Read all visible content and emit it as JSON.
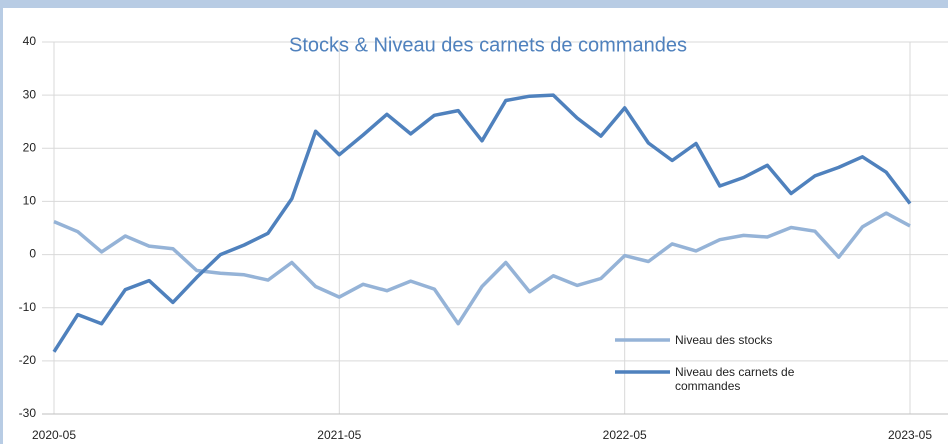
{
  "chart_data": {
    "type": "line",
    "title": "Stocks & Niveau des carnets de commandes",
    "categories": [
      "2020-05",
      null,
      null,
      null,
      null,
      null,
      null,
      null,
      null,
      null,
      null,
      null,
      "2021-05",
      null,
      null,
      null,
      null,
      null,
      null,
      null,
      null,
      null,
      null,
      null,
      "2022-05",
      null,
      null,
      null,
      null,
      null,
      null,
      null,
      null,
      null,
      null,
      null,
      "2023-05"
    ],
    "series": [
      {
        "name": "Niveau des stocks",
        "color": "#95b3d7",
        "values": [
          6.2,
          4.3,
          0.5,
          3.5,
          1.6,
          1.1,
          -3,
          -3.5,
          -3.8,
          -4.8,
          -1.5,
          -6,
          -8,
          -5.6,
          -6.8,
          -5,
          -6.5,
          -13,
          -6,
          -1.5,
          -7,
          -4,
          -5.8,
          -4.5,
          -0.2,
          -1.3,
          2,
          0.7,
          2.8,
          3.6,
          3.3,
          5.1,
          4.4,
          -0.5,
          5.2,
          7.8,
          5.4
        ]
      },
      {
        "name": "Niveau des carnets de commandes",
        "color": "#4f81bd",
        "values": [
          -18.3,
          -11.3,
          -13,
          -6.6,
          -4.9,
          -9,
          -4.3,
          0,
          1.8,
          4,
          10.5,
          23.2,
          18.8,
          22.5,
          26.4,
          22.7,
          26.2,
          27.1,
          21.4,
          29,
          29.8,
          30,
          25.7,
          22.3,
          27.6,
          21,
          17.7,
          20.9,
          12.9,
          14.5,
          16.8,
          11.5,
          14.8,
          16.4,
          18.4,
          15.5,
          9.6
        ]
      }
    ],
    "ylim": [
      -30,
      40
    ],
    "yticks": [
      -30,
      -20,
      -10,
      0,
      10,
      20,
      30,
      40
    ],
    "grid": true,
    "legend": "lower right"
  }
}
